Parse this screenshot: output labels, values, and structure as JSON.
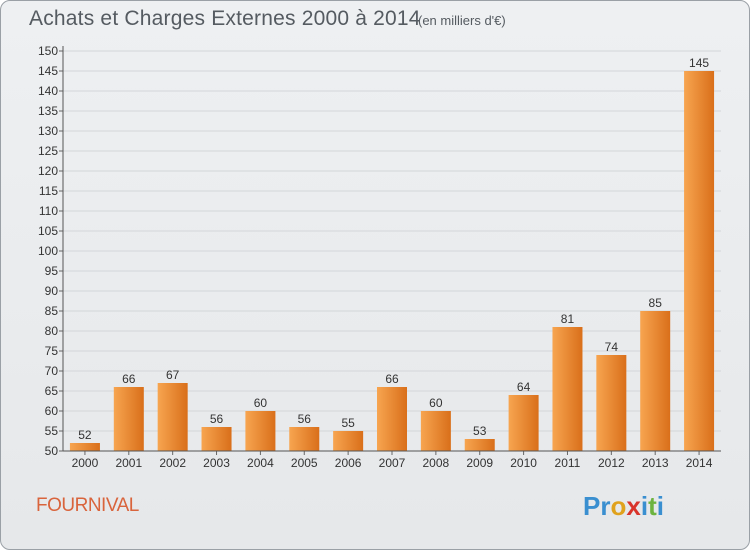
{
  "header": {
    "title": "Achats et Charges Externes 2000 à 2014",
    "unit": "(en milliers d'€)"
  },
  "footer": {
    "commune": "FOURNIVAL",
    "logo_letters": [
      {
        "ch": "P",
        "color": "#3a8fd0"
      },
      {
        "ch": "r",
        "color": "#3a8fd0"
      },
      {
        "ch": "o",
        "color": "#e0a21d"
      },
      {
        "ch": "x",
        "color": "#d9342b"
      },
      {
        "ch": "i",
        "color": "#3a8fd0"
      },
      {
        "ch": "t",
        "color": "#6db33f"
      },
      {
        "ch": "i",
        "color": "#3a8fd0"
      }
    ]
  },
  "chart_data": {
    "type": "bar",
    "title": "Achats et Charges Externes 2000 à 2014",
    "subtitle": "(en milliers d'€)",
    "categories": [
      "2000",
      "2001",
      "2002",
      "2003",
      "2004",
      "2005",
      "2006",
      "2007",
      "2008",
      "2009",
      "2010",
      "2011",
      "2012",
      "2013",
      "2014"
    ],
    "values": [
      52,
      66,
      67,
      56,
      60,
      56,
      55,
      66,
      60,
      53,
      64,
      81,
      74,
      85,
      145
    ],
    "ylim": [
      50,
      150
    ],
    "ytick_step": 5,
    "grid": true,
    "bar_color_light": "#f7a550",
    "bar_color_dark": "#d96f1a"
  }
}
